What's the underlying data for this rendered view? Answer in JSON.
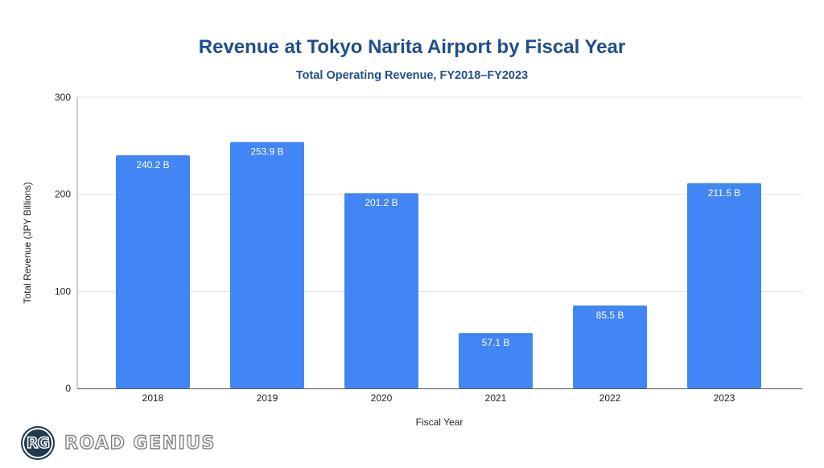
{
  "chart_data": {
    "type": "bar",
    "title": "Revenue at Tokyo Narita Airport by Fiscal Year",
    "subtitle": "Total Operating Revenue, FY2018–FY2023",
    "xlabel": "Fiscal Year",
    "ylabel": "Total Revenue (JPY Billions)",
    "categories": [
      "2018",
      "2019",
      "2020",
      "2021",
      "2022",
      "2023"
    ],
    "values": [
      240.2,
      253.9,
      201.2,
      57.1,
      85.5,
      211.5
    ],
    "data_labels": [
      "240.2 B",
      "253.9 B",
      "201.2 B",
      "57.1 B",
      "85.5 B",
      "211.5 B"
    ],
    "ylim": [
      0,
      300
    ],
    "yticks": [
      0,
      100,
      200,
      300
    ],
    "grid": true,
    "legend": "none",
    "bar_color": "#4285f4"
  },
  "branding": {
    "logo_initials": "RG",
    "logo_text": "ROAD GENIUS"
  }
}
